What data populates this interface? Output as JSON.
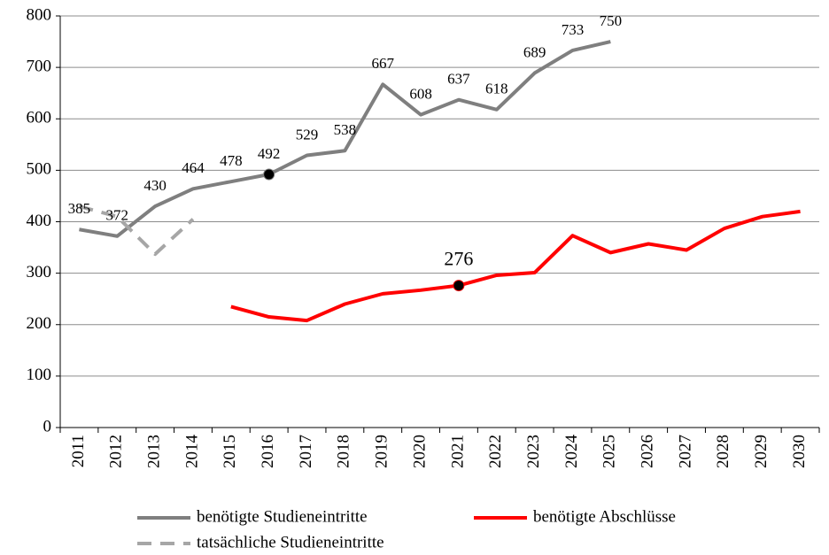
{
  "chart_data": {
    "type": "line",
    "categories": [
      "2011",
      "2012",
      "2013",
      "2014",
      "2015",
      "2016",
      "2017",
      "2018",
      "2019",
      "2020",
      "2021",
      "2022",
      "2023",
      "2024",
      "2025",
      "2026",
      "2027",
      "2028",
      "2029",
      "2030"
    ],
    "series": [
      {
        "name": "benötigte Studieneintritte",
        "color": "#7f7f7f",
        "dash": false,
        "values": [
          385,
          372,
          430,
          464,
          478,
          492,
          529,
          538,
          667,
          608,
          637,
          618,
          689,
          733,
          750,
          null,
          null,
          null,
          null,
          null
        ],
        "labeled": [
          0,
          1,
          2,
          3,
          4,
          5,
          6,
          7,
          8,
          9,
          10,
          11,
          12,
          13,
          14
        ],
        "markers": [
          5
        ]
      },
      {
        "name": "benötigte Abschlüsse",
        "color": "#ff0000",
        "dash": false,
        "values": [
          null,
          null,
          null,
          null,
          235,
          215,
          208,
          240,
          260,
          267,
          276,
          296,
          301,
          373,
          340,
          357,
          345,
          387,
          410,
          420
        ],
        "labeled": [
          10
        ],
        "markers": [
          10
        ]
      },
      {
        "name": "tatsächliche Studieneintritte",
        "color": "#a6a6a6",
        "dash": true,
        "values": [
          430,
          410,
          337,
          405,
          null,
          null,
          null,
          null,
          null,
          null,
          null,
          null,
          null,
          null,
          null,
          null,
          null,
          null,
          null,
          null
        ],
        "labeled": [],
        "markers": []
      }
    ],
    "ylim": [
      0,
      800
    ],
    "yticks": [
      0,
      100,
      200,
      300,
      400,
      500,
      600,
      700,
      800
    ],
    "grid": true
  }
}
